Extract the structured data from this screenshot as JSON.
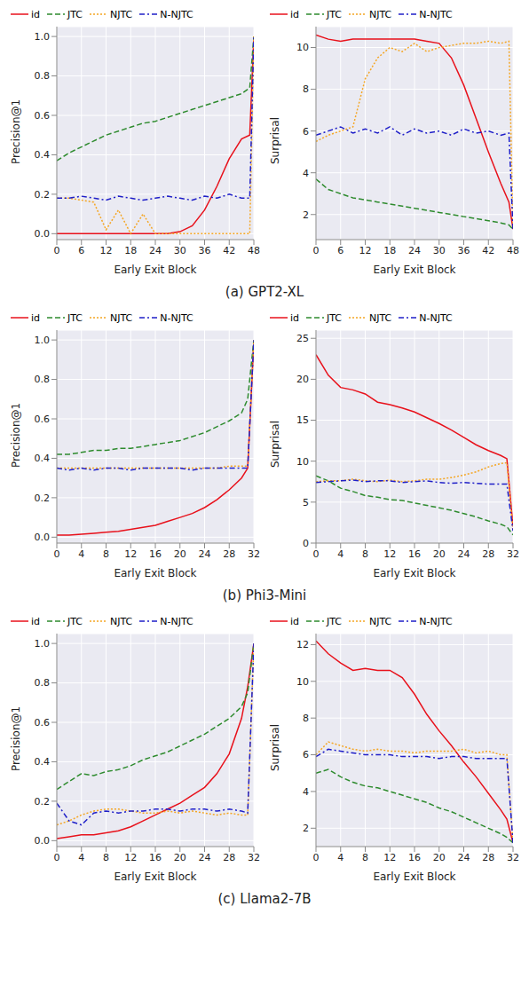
{
  "captions": [
    "(a) GPT2-XL",
    "(b) Phi3-Mini",
    "(c) Llama2-7B"
  ],
  "chart_data": [
    {
      "type": "line",
      "x_label": "Early Exit Block",
      "y_label": "Precision@1",
      "legend": "top",
      "grid": true,
      "x": [
        0,
        3,
        6,
        9,
        12,
        15,
        18,
        21,
        24,
        27,
        30,
        33,
        36,
        39,
        42,
        45,
        47,
        48
      ],
      "xlim": [
        0,
        48
      ],
      "xticks": [
        0,
        6,
        12,
        18,
        24,
        30,
        36,
        42,
        48
      ],
      "ylim": [
        -0.03,
        1.05
      ],
      "yticks": [
        {
          "value": 0,
          "label": "0.0"
        },
        0.2,
        0.4,
        0.6,
        0.8,
        {
          "value": 1,
          "label": "1.0"
        }
      ],
      "series": [
        {
          "name": "id",
          "color": "#e8111b",
          "line_style": "solid",
          "values": [
            0,
            0,
            0,
            0,
            0,
            0,
            0,
            0,
            0,
            0,
            0.01,
            0.04,
            0.12,
            0.24,
            0.38,
            0.48,
            0.5,
            1.0
          ]
        },
        {
          "name": "JTC",
          "color": "#2e8b2e",
          "line_style": "dashed",
          "values": [
            0.37,
            0.41,
            0.44,
            0.47,
            0.5,
            0.52,
            0.54,
            0.56,
            0.57,
            0.59,
            0.61,
            0.63,
            0.65,
            0.67,
            0.69,
            0.71,
            0.74,
            1.0
          ]
        },
        {
          "name": "NJTC",
          "color": "#f5a623",
          "line_style": "dotted",
          "values": [
            0.18,
            0.18,
            0.17,
            0.16,
            0.02,
            0.12,
            0.0,
            0.1,
            0.0,
            0.0,
            0.0,
            0.0,
            0.0,
            0.0,
            0.0,
            0.0,
            0.0,
            1.0
          ]
        },
        {
          "name": "N-NJTC",
          "color": "#1f1fc8",
          "line_style": "dashdot",
          "values": [
            0.18,
            0.18,
            0.19,
            0.18,
            0.17,
            0.19,
            0.18,
            0.17,
            0.18,
            0.19,
            0.18,
            0.17,
            0.19,
            0.18,
            0.2,
            0.18,
            0.18,
            1.0
          ]
        }
      ]
    },
    {
      "type": "line",
      "x_label": "Early Exit Block",
      "y_label": "Surprisal",
      "legend": "top",
      "grid": true,
      "x": [
        0,
        3,
        6,
        9,
        12,
        15,
        18,
        21,
        24,
        27,
        30,
        33,
        36,
        39,
        42,
        45,
        47,
        48
      ],
      "xlim": [
        0,
        48
      ],
      "xticks": [
        0,
        6,
        12,
        18,
        24,
        30,
        36,
        42,
        48
      ],
      "ylim": [
        0.8,
        11
      ],
      "yticks": [
        2,
        4,
        6,
        8,
        10
      ],
      "series": [
        {
          "name": "id",
          "color": "#e8111b",
          "line_style": "solid",
          "values": [
            10.6,
            10.4,
            10.3,
            10.4,
            10.4,
            10.4,
            10.4,
            10.4,
            10.4,
            10.3,
            10.2,
            9.5,
            8.2,
            6.6,
            5.0,
            3.5,
            2.6,
            1.3
          ]
        },
        {
          "name": "JTC",
          "color": "#2e8b2e",
          "line_style": "dashed",
          "values": [
            3.7,
            3.2,
            3.0,
            2.8,
            2.7,
            2.6,
            2.5,
            2.4,
            2.3,
            2.2,
            2.1,
            2.0,
            1.9,
            1.8,
            1.7,
            1.6,
            1.5,
            1.3
          ]
        },
        {
          "name": "NJTC",
          "color": "#f5a623",
          "line_style": "dotted",
          "values": [
            5.5,
            5.8,
            6.0,
            6.2,
            8.5,
            9.5,
            10.0,
            9.8,
            10.2,
            9.8,
            10.0,
            10.1,
            10.2,
            10.2,
            10.3,
            10.2,
            10.3,
            1.3
          ]
        },
        {
          "name": "N-NJTC",
          "color": "#1f1fc8",
          "line_style": "dashdot",
          "values": [
            5.8,
            6.0,
            6.2,
            5.9,
            6.1,
            5.9,
            6.2,
            5.8,
            6.1,
            5.9,
            6.0,
            5.8,
            6.1,
            5.9,
            6.0,
            5.8,
            5.9,
            1.3
          ]
        }
      ]
    },
    {
      "type": "line",
      "x_label": "Early Exit Block",
      "y_label": "Precision@1",
      "legend": "top",
      "grid": true,
      "x": [
        0,
        2,
        4,
        6,
        8,
        10,
        12,
        14,
        16,
        18,
        20,
        22,
        24,
        26,
        28,
        30,
        31,
        32
      ],
      "xlim": [
        0,
        32
      ],
      "xticks": [
        0,
        4,
        8,
        12,
        16,
        20,
        24,
        28,
        32
      ],
      "ylim": [
        -0.03,
        1.05
      ],
      "yticks": [
        {
          "value": 0,
          "label": "0.0"
        },
        0.2,
        0.4,
        0.6,
        0.8,
        {
          "value": 1,
          "label": "1.0"
        }
      ],
      "series": [
        {
          "name": "id",
          "color": "#e8111b",
          "line_style": "solid",
          "values": [
            0.01,
            0.01,
            0.015,
            0.02,
            0.025,
            0.03,
            0.04,
            0.05,
            0.06,
            0.08,
            0.1,
            0.12,
            0.15,
            0.19,
            0.24,
            0.3,
            0.35,
            1.0
          ]
        },
        {
          "name": "JTC",
          "color": "#2e8b2e",
          "line_style": "dashed",
          "values": [
            0.42,
            0.42,
            0.43,
            0.44,
            0.44,
            0.45,
            0.45,
            0.46,
            0.47,
            0.48,
            0.49,
            0.51,
            0.53,
            0.56,
            0.59,
            0.63,
            0.7,
            1.0
          ]
        },
        {
          "name": "NJTC",
          "color": "#f5a623",
          "line_style": "dotted",
          "values": [
            0.35,
            0.35,
            0.35,
            0.35,
            0.35,
            0.35,
            0.35,
            0.35,
            0.35,
            0.35,
            0.35,
            0.35,
            0.35,
            0.35,
            0.36,
            0.36,
            0.36,
            1.0
          ]
        },
        {
          "name": "N-NJTC",
          "color": "#1f1fc8",
          "line_style": "dashdot",
          "values": [
            0.35,
            0.34,
            0.35,
            0.34,
            0.35,
            0.35,
            0.34,
            0.35,
            0.35,
            0.35,
            0.35,
            0.34,
            0.35,
            0.35,
            0.35,
            0.35,
            0.35,
            1.0
          ]
        }
      ]
    },
    {
      "type": "line",
      "x_label": "Early Exit Block",
      "y_label": "Surprisal",
      "legend": "top",
      "grid": true,
      "x": [
        0,
        2,
        4,
        6,
        8,
        10,
        12,
        14,
        16,
        18,
        20,
        22,
        24,
        26,
        28,
        30,
        31,
        32
      ],
      "xlim": [
        0,
        32
      ],
      "xticks": [
        0,
        4,
        8,
        12,
        16,
        20,
        24,
        28,
        32
      ],
      "ylim": [
        0,
        26
      ],
      "yticks": [
        0,
        5,
        10,
        15,
        20,
        25
      ],
      "series": [
        {
          "name": "id",
          "color": "#e8111b",
          "line_style": "solid",
          "values": [
            23.0,
            20.5,
            19.0,
            18.7,
            18.2,
            17.2,
            16.9,
            16.5,
            16.0,
            15.3,
            14.6,
            13.8,
            12.9,
            12.0,
            11.3,
            10.7,
            10.3,
            2.0
          ]
        },
        {
          "name": "JTC",
          "color": "#2e8b2e",
          "line_style": "dashed",
          "values": [
            8.2,
            7.6,
            6.7,
            6.3,
            5.8,
            5.6,
            5.3,
            5.2,
            4.9,
            4.6,
            4.3,
            4.0,
            3.6,
            3.2,
            2.7,
            2.3,
            2.0,
            1.0
          ]
        },
        {
          "name": "NJTC",
          "color": "#f5a623",
          "line_style": "dotted",
          "values": [
            7.5,
            7.6,
            7.6,
            7.8,
            7.6,
            7.5,
            7.7,
            7.5,
            7.6,
            7.8,
            7.8,
            8.0,
            8.3,
            8.7,
            9.3,
            9.7,
            9.8,
            1.5
          ]
        },
        {
          "name": "N-NJTC",
          "color": "#1f1fc8",
          "line_style": "dashdot",
          "values": [
            7.4,
            7.5,
            7.6,
            7.7,
            7.5,
            7.6,
            7.6,
            7.4,
            7.5,
            7.6,
            7.4,
            7.3,
            7.4,
            7.3,
            7.2,
            7.2,
            7.2,
            1.5
          ]
        }
      ]
    },
    {
      "type": "line",
      "x_label": "Early Exit Block",
      "y_label": "Precision@1",
      "legend": "top",
      "grid": true,
      "x": [
        0,
        2,
        4,
        6,
        8,
        10,
        12,
        14,
        16,
        18,
        20,
        22,
        24,
        26,
        28,
        30,
        31,
        32
      ],
      "xlim": [
        0,
        32
      ],
      "xticks": [
        0,
        4,
        8,
        12,
        16,
        20,
        24,
        28,
        32
      ],
      "ylim": [
        -0.03,
        1.05
      ],
      "yticks": [
        {
          "value": 0,
          "label": "0.0"
        },
        0.2,
        0.4,
        0.6,
        0.8,
        {
          "value": 1,
          "label": "1.0"
        }
      ],
      "series": [
        {
          "name": "id",
          "color": "#e8111b",
          "line_style": "solid",
          "values": [
            0.01,
            0.02,
            0.03,
            0.03,
            0.04,
            0.05,
            0.07,
            0.1,
            0.13,
            0.16,
            0.19,
            0.23,
            0.27,
            0.34,
            0.44,
            0.62,
            0.78,
            1.0
          ]
        },
        {
          "name": "JTC",
          "color": "#2e8b2e",
          "line_style": "dashed",
          "values": [
            0.26,
            0.3,
            0.34,
            0.33,
            0.35,
            0.36,
            0.38,
            0.41,
            0.43,
            0.45,
            0.48,
            0.51,
            0.54,
            0.58,
            0.62,
            0.68,
            0.75,
            1.0
          ]
        },
        {
          "name": "NJTC",
          "color": "#f5a623",
          "line_style": "dotted",
          "values": [
            0.08,
            0.1,
            0.13,
            0.15,
            0.16,
            0.16,
            0.15,
            0.14,
            0.14,
            0.15,
            0.14,
            0.15,
            0.14,
            0.13,
            0.14,
            0.13,
            0.13,
            1.0
          ]
        },
        {
          "name": "N-NJTC",
          "color": "#1f1fc8",
          "line_style": "dashdot",
          "values": [
            0.19,
            0.1,
            0.08,
            0.14,
            0.15,
            0.14,
            0.15,
            0.15,
            0.16,
            0.16,
            0.15,
            0.16,
            0.16,
            0.15,
            0.16,
            0.15,
            0.14,
            1.0
          ]
        }
      ]
    },
    {
      "type": "line",
      "x_label": "Early Exit Block",
      "y_label": "Surprisal",
      "legend": "top",
      "grid": true,
      "x": [
        0,
        2,
        4,
        6,
        8,
        10,
        12,
        14,
        16,
        18,
        20,
        22,
        24,
        26,
        28,
        30,
        31,
        32
      ],
      "xlim": [
        0,
        32
      ],
      "xticks": [
        0,
        4,
        8,
        12,
        16,
        20,
        24,
        28,
        32
      ],
      "ylim": [
        1,
        12.6
      ],
      "yticks": [
        2,
        4,
        6,
        8,
        10,
        12
      ],
      "series": [
        {
          "name": "id",
          "color": "#e8111b",
          "line_style": "solid",
          "values": [
            12.2,
            11.5,
            11.0,
            10.6,
            10.7,
            10.6,
            10.6,
            10.2,
            9.3,
            8.2,
            7.3,
            6.5,
            5.6,
            4.8,
            3.9,
            3.0,
            2.5,
            1.2
          ]
        },
        {
          "name": "JTC",
          "color": "#2e8b2e",
          "line_style": "dashed",
          "values": [
            5.0,
            5.2,
            4.8,
            4.5,
            4.3,
            4.2,
            4.0,
            3.8,
            3.6,
            3.4,
            3.1,
            2.9,
            2.6,
            2.3,
            2.0,
            1.7,
            1.5,
            1.2
          ]
        },
        {
          "name": "NJTC",
          "color": "#f5a623",
          "line_style": "dotted",
          "values": [
            6.0,
            6.7,
            6.5,
            6.3,
            6.2,
            6.3,
            6.2,
            6.2,
            6.1,
            6.2,
            6.2,
            6.2,
            6.3,
            6.1,
            6.2,
            6.0,
            6.0,
            1.2
          ]
        },
        {
          "name": "N-NJTC",
          "color": "#1f1fc8",
          "line_style": "dashdot",
          "values": [
            5.9,
            6.3,
            6.2,
            6.1,
            6.0,
            6.0,
            6.0,
            5.9,
            5.9,
            5.9,
            5.8,
            5.9,
            5.9,
            5.8,
            5.8,
            5.8,
            5.8,
            1.2
          ]
        }
      ]
    }
  ]
}
